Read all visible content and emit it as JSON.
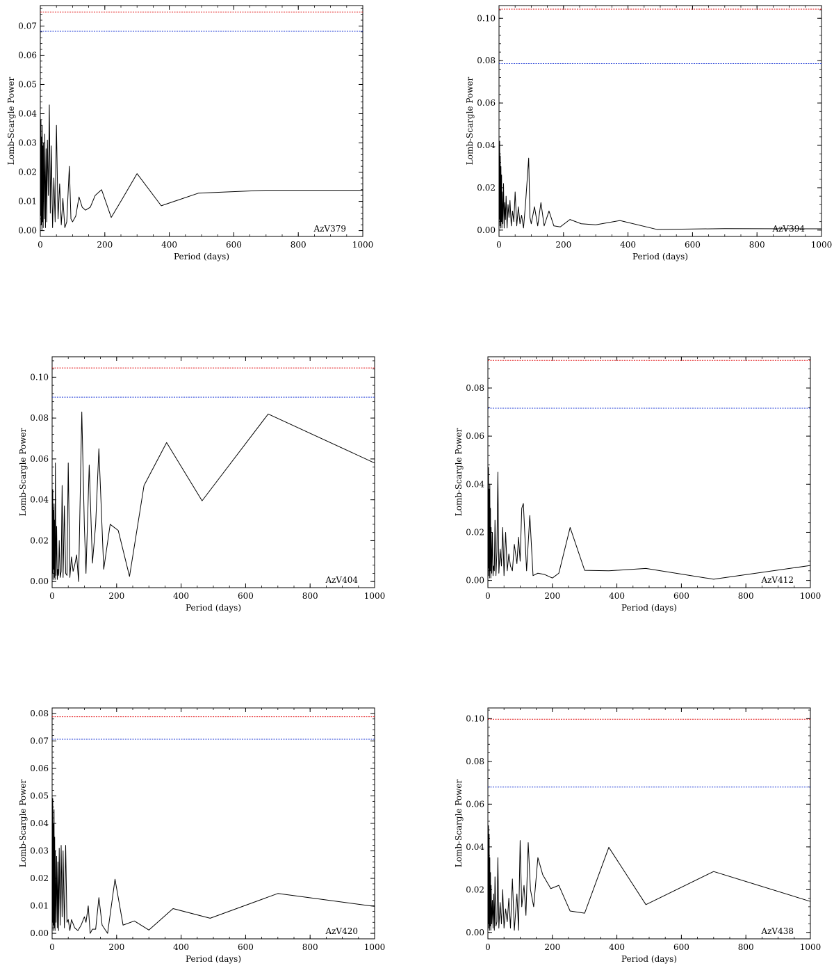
{
  "figure": {
    "x_label": "Period (days)",
    "y_label": "Lomb-Scargle Power"
  },
  "colors": {
    "line": "#000000",
    "red_line": "#e41a1c",
    "blue_line": "#1f3bd6",
    "axis": "#000000"
  },
  "chart_data": [
    {
      "type": "line",
      "star": "AzV379",
      "xlabel": "Period (days)",
      "ylabel": "Lomb-Scargle Power",
      "xlim": [
        0,
        1000
      ],
      "ylim": [
        -0.002,
        0.077
      ],
      "xticks": [
        0,
        200,
        400,
        600,
        800,
        1000
      ],
      "yticks": [
        0.0,
        0.01,
        0.02,
        0.03,
        0.04,
        0.05,
        0.06,
        0.07
      ],
      "yminor": 0.002,
      "xminor": 50,
      "red_level": 0.0748,
      "blue_level": 0.0682,
      "x": [
        1,
        2,
        3,
        4,
        5,
        6,
        7,
        8,
        9,
        10,
        12,
        14,
        16,
        18,
        20,
        22,
        25,
        28,
        31,
        34,
        38,
        42,
        46,
        50,
        55,
        60,
        65,
        70,
        76,
        82,
        90,
        95,
        100,
        110,
        120,
        130,
        140,
        155,
        170,
        190,
        220,
        255,
        300,
        375,
        490,
        700,
        1000
      ],
      "y": [
        0.005,
        0.038,
        0.002,
        0.032,
        0.0,
        0.036,
        0.003,
        0.029,
        0.001,
        0.03,
        0.004,
        0.033,
        0.001,
        0.028,
        0.003,
        0.031,
        0.012,
        0.043,
        0.006,
        0.029,
        0.001,
        0.018,
        0.003,
        0.036,
        0.004,
        0.016,
        0.002,
        0.011,
        0.001,
        0.003,
        0.022,
        0.004,
        0.003,
        0.005,
        0.0115,
        0.008,
        0.007,
        0.008,
        0.012,
        0.014,
        0.0045,
        0.011,
        0.0195,
        0.0085,
        0.0128,
        0.0138,
        0.0138
      ],
      "label": "AzV379"
    },
    {
      "type": "line",
      "star": "AzV394",
      "xlabel": "Period (days)",
      "ylabel": "Lomb-Scargle Power",
      "xlim": [
        0,
        1000
      ],
      "ylim": [
        -0.003,
        0.106
      ],
      "xticks": [
        0,
        200,
        400,
        600,
        800,
        1000
      ],
      "yticks": [
        0.0,
        0.02,
        0.04,
        0.06,
        0.08,
        0.1
      ],
      "yminor": 0.004,
      "xminor": 50,
      "red_level": 0.1043,
      "blue_level": 0.0786,
      "x": [
        1,
        2,
        3,
        4,
        5,
        6,
        7,
        8,
        9,
        10,
        12,
        14,
        16,
        18,
        20,
        22,
        25,
        28,
        31,
        34,
        38,
        42,
        46,
        50,
        55,
        60,
        65,
        70,
        76,
        82,
        92,
        96,
        100,
        110,
        120,
        130,
        140,
        155,
        170,
        190,
        220,
        255,
        300,
        375,
        490,
        700,
        1000
      ],
      "y": [
        0.005,
        0.042,
        0.002,
        0.035,
        0.001,
        0.03,
        0.004,
        0.026,
        0.001,
        0.018,
        0.003,
        0.022,
        0.001,
        0.013,
        0.005,
        0.016,
        0.001,
        0.012,
        0.006,
        0.014,
        0.002,
        0.009,
        0.004,
        0.018,
        0.002,
        0.011,
        0.003,
        0.007,
        0.001,
        0.012,
        0.034,
        0.006,
        0.003,
        0.011,
        0.002,
        0.013,
        0.002,
        0.009,
        0.002,
        0.0015,
        0.005,
        0.003,
        0.0025,
        0.0045,
        0.0003,
        0.0007,
        0.0006
      ],
      "label": "AzV394"
    },
    {
      "type": "line",
      "star": "AzV404",
      "xlabel": "Period (days)",
      "ylabel": "Lomb-Scargle Power",
      "xlim": [
        0,
        1000
      ],
      "ylim": [
        -0.003,
        0.11
      ],
      "xticks": [
        0,
        200,
        400,
        600,
        800,
        1000
      ],
      "yticks": [
        0.0,
        0.02,
        0.04,
        0.06,
        0.08,
        0.1
      ],
      "yminor": 0.004,
      "xminor": 50,
      "red_level": 0.1045,
      "blue_level": 0.0902,
      "x": [
        1,
        2,
        3,
        4,
        5,
        6,
        7,
        8,
        9,
        10,
        12,
        14,
        16,
        18,
        20,
        22,
        25,
        28,
        31,
        34,
        38,
        42,
        46,
        50,
        55,
        60,
        65,
        70,
        76,
        82,
        92,
        100,
        105,
        115,
        125,
        135,
        145,
        160,
        180,
        205,
        240,
        285,
        355,
        465,
        670,
        1000
      ],
      "y": [
        0.004,
        0.045,
        0.001,
        0.035,
        0.006,
        0.038,
        0.002,
        0.03,
        0.001,
        0.058,
        0.003,
        0.027,
        0.001,
        0.006,
        0.003,
        0.02,
        0.002,
        0.005,
        0.047,
        0.002,
        0.037,
        0.004,
        0.003,
        0.058,
        0.002,
        0.012,
        0.005,
        0.008,
        0.013,
        0.0,
        0.083,
        0.027,
        0.004,
        0.057,
        0.009,
        0.028,
        0.065,
        0.006,
        0.028,
        0.025,
        0.0025,
        0.047,
        0.068,
        0.0395,
        0.082,
        0.058
      ],
      "label": "AzV404"
    },
    {
      "type": "line",
      "star": "AzV412",
      "xlabel": "Period (days)",
      "ylabel": "Lomb-Scargle Power",
      "xlim": [
        0,
        1000
      ],
      "ylim": [
        -0.003,
        0.093
      ],
      "xticks": [
        0,
        200,
        400,
        600,
        800,
        1000
      ],
      "yticks": [
        0.0,
        0.02,
        0.04,
        0.06,
        0.08
      ],
      "yminor": 0.004,
      "xminor": 50,
      "red_level": 0.0915,
      "blue_level": 0.0716,
      "x": [
        1,
        2,
        3,
        4,
        5,
        6,
        7,
        8,
        9,
        10,
        12,
        14,
        16,
        18,
        20,
        22,
        25,
        28,
        31,
        34,
        38,
        42,
        46,
        50,
        55,
        60,
        65,
        70,
        76,
        82,
        90,
        95,
        100,
        105,
        110,
        120,
        130,
        140,
        155,
        175,
        200,
        220,
        255,
        300,
        375,
        490,
        700,
        1000
      ],
      "y": [
        0.005,
        0.047,
        0.002,
        0.038,
        0.001,
        0.04,
        0.004,
        0.03,
        0.001,
        0.022,
        0.003,
        0.02,
        0.002,
        0.006,
        0.004,
        0.025,
        0.002,
        0.012,
        0.045,
        0.003,
        0.013,
        0.006,
        0.022,
        0.002,
        0.02,
        0.004,
        0.011,
        0.006,
        0.004,
        0.015,
        0.007,
        0.018,
        0.008,
        0.03,
        0.032,
        0.004,
        0.027,
        0.002,
        0.003,
        0.0025,
        0.001,
        0.003,
        0.022,
        0.0042,
        0.004,
        0.005,
        0.0005,
        0.0062
      ],
      "label": "AzV412"
    },
    {
      "type": "line",
      "star": "AzV420",
      "xlabel": "Period (days)",
      "ylabel": "Lomb-Scargle Power",
      "xlim": [
        0,
        1000
      ],
      "ylim": [
        -0.002,
        0.082
      ],
      "xticks": [
        0,
        200,
        400,
        600,
        800,
        1000
      ],
      "yticks": [
        0.0,
        0.01,
        0.02,
        0.03,
        0.04,
        0.05,
        0.06,
        0.07,
        0.08
      ],
      "yminor": 0.002,
      "xminor": 50,
      "red_level": 0.0788,
      "blue_level": 0.0706,
      "x": [
        1,
        2,
        3,
        4,
        5,
        6,
        7,
        8,
        9,
        10,
        12,
        14,
        16,
        18,
        20,
        22,
        25,
        28,
        31,
        34,
        38,
        42,
        46,
        50,
        55,
        60,
        70,
        80,
        90,
        100,
        105,
        112,
        118,
        125,
        135,
        145,
        155,
        172,
        195,
        220,
        255,
        300,
        375,
        490,
        700,
        1000
      ],
      "y": [
        0.004,
        0.049,
        0.001,
        0.04,
        0.003,
        0.045,
        0.002,
        0.035,
        0.001,
        0.03,
        0.004,
        0.028,
        0.002,
        0.026,
        0.001,
        0.031,
        0.003,
        0.032,
        0.006,
        0.03,
        0.002,
        0.032,
        0.004,
        0.005,
        0.001,
        0.005,
        0.002,
        0.001,
        0.003,
        0.006,
        0.004,
        0.01,
        0.0,
        0.0015,
        0.0015,
        0.013,
        0.003,
        0.0,
        0.0197,
        0.003,
        0.0045,
        0.0012,
        0.009,
        0.0055,
        0.0145,
        0.0098
      ],
      "label": "AzV420"
    },
    {
      "type": "line",
      "star": "AzV438",
      "xlabel": "Period (days)",
      "ylabel": "Lomb-Scargle Power",
      "xlim": [
        0,
        1000
      ],
      "ylim": [
        -0.003,
        0.105
      ],
      "xticks": [
        0,
        200,
        400,
        600,
        800,
        1000
      ],
      "yticks": [
        0.0,
        0.02,
        0.04,
        0.06,
        0.08,
        0.1
      ],
      "yminor": 0.004,
      "xminor": 50,
      "red_level": 0.0997,
      "blue_level": 0.068,
      "x": [
        1,
        2,
        3,
        4,
        5,
        6,
        7,
        8,
        9,
        10,
        12,
        14,
        16,
        18,
        20,
        22,
        25,
        28,
        31,
        34,
        38,
        42,
        46,
        50,
        55,
        60,
        65,
        70,
        76,
        82,
        90,
        95,
        100,
        105,
        112,
        118,
        125,
        132,
        142,
        155,
        170,
        195,
        220,
        255,
        300,
        375,
        490,
        700,
        1000
      ],
      "y": [
        0.004,
        0.05,
        0.002,
        0.046,
        0.001,
        0.035,
        0.003,
        0.028,
        0.001,
        0.022,
        0.004,
        0.015,
        0.002,
        0.018,
        0.001,
        0.026,
        0.003,
        0.005,
        0.035,
        0.002,
        0.014,
        0.004,
        0.02,
        0.002,
        0.011,
        0.005,
        0.016,
        0.002,
        0.025,
        0.001,
        0.018,
        0.001,
        0.043,
        0.012,
        0.022,
        0.008,
        0.042,
        0.02,
        0.012,
        0.035,
        0.027,
        0.0205,
        0.022,
        0.01,
        0.009,
        0.0398,
        0.013,
        0.0285,
        0.0145
      ],
      "label": "AzV438"
    }
  ]
}
